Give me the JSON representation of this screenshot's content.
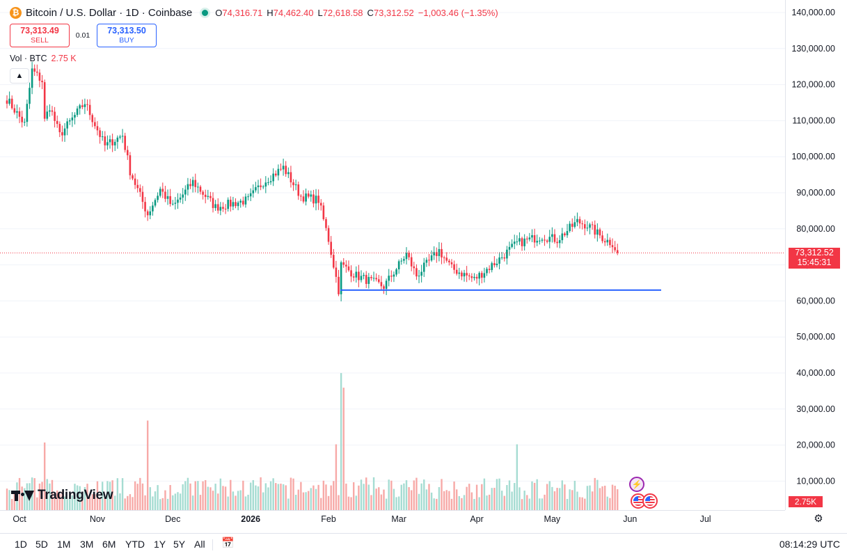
{
  "header": {
    "coin_icon": "bitcoin-icon",
    "symbol": "Bitcoin / U.S. Dollar · 1D · Coinbase",
    "o_label": "O",
    "o_value": "74,316.71",
    "h_label": "H",
    "h_value": "74,462.40",
    "l_label": "L",
    "l_value": "72,618.58",
    "c_label": "C",
    "c_value": "73,312.52",
    "change": "−1,003.46 (−1.35%)"
  },
  "trade": {
    "sell_price": "73,313.49",
    "sell_label": "SELL",
    "spread": "0.01",
    "buy_price": "73,313.50",
    "buy_label": "BUY"
  },
  "volume_legend": {
    "label": "Vol · BTC",
    "value": "2.75 K"
  },
  "price_axis": {
    "labels": [
      "140,000.00",
      "130,000.00",
      "120,000.00",
      "110,000.00",
      "100,000.00",
      "90,000.00",
      "80,000.00",
      "70,000.00",
      "60,000.00",
      "50,000.00",
      "40,000.00",
      "30,000.00",
      "20,000.00",
      "10,000.00"
    ],
    "current_price": "73,312.52",
    "countdown": "15:45:31",
    "volume_tag": "2.75K"
  },
  "time_axis": [
    "Oct",
    "Nov",
    "Dec",
    "2026",
    "Feb",
    "Mar",
    "Apr",
    "May",
    "Jun",
    "Jul"
  ],
  "logo": "TradingView",
  "timeframes": [
    "1D",
    "5D",
    "1M",
    "3M",
    "6M",
    "YTD",
    "1Y",
    "5Y",
    "All"
  ],
  "clock": "08:14:29 UTC",
  "colors": {
    "up": "#089981",
    "down": "#f23645",
    "line": "#2962ff"
  },
  "chart_data": {
    "type": "candlestick",
    "y_axis_range": [
      0,
      140000
    ],
    "support_line": 63000,
    "anchors": [
      {
        "date": "2025-09-26",
        "price": 116000
      },
      {
        "date": "2025-09-30",
        "price": 112000
      },
      {
        "date": "2025-10-03",
        "price": 109000
      },
      {
        "date": "2025-10-06",
        "price": 124000
      },
      {
        "date": "2025-10-10",
        "price": 121000
      },
      {
        "date": "2025-10-11",
        "price": 110000
      },
      {
        "date": "2025-10-13",
        "price": 114000
      },
      {
        "date": "2025-10-17",
        "price": 106000
      },
      {
        "date": "2025-10-27",
        "price": 115000
      },
      {
        "date": "2025-11-04",
        "price": 103000
      },
      {
        "date": "2025-11-11",
        "price": 106000
      },
      {
        "date": "2025-11-14",
        "price": 96000
      },
      {
        "date": "2025-11-21",
        "price": 84000
      },
      {
        "date": "2025-11-26",
        "price": 91000
      },
      {
        "date": "2025-12-01",
        "price": 86000
      },
      {
        "date": "2025-12-09",
        "price": 93000
      },
      {
        "date": "2025-12-18",
        "price": 86000
      },
      {
        "date": "2025-12-31",
        "price": 88000
      },
      {
        "date": "2026-01-06",
        "price": 93000
      },
      {
        "date": "2026-01-14",
        "price": 97000
      },
      {
        "date": "2026-01-21",
        "price": 89000
      },
      {
        "date": "2026-01-28",
        "price": 88000
      },
      {
        "date": "2026-02-01",
        "price": 77000
      },
      {
        "date": "2026-02-05",
        "price": 63000
      },
      {
        "date": "2026-02-06",
        "price": 70000
      },
      {
        "date": "2026-02-12",
        "price": 67000
      },
      {
        "date": "2026-02-23",
        "price": 64000
      },
      {
        "date": "2026-03-04",
        "price": 73000
      },
      {
        "date": "2026-03-08",
        "price": 67000
      },
      {
        "date": "2026-03-17",
        "price": 74000
      },
      {
        "date": "2026-03-22",
        "price": 69000
      },
      {
        "date": "2026-03-31",
        "price": 66000
      },
      {
        "date": "2026-04-09",
        "price": 71000
      },
      {
        "date": "2026-04-17",
        "price": 76000
      },
      {
        "date": "2026-04-27",
        "price": 78000
      },
      {
        "date": "2026-05-03",
        "price": 77000
      },
      {
        "date": "2026-05-11",
        "price": 82000
      },
      {
        "date": "2026-05-15",
        "price": 81000
      },
      {
        "date": "2026-05-22",
        "price": 77000
      },
      {
        "date": "2026-05-25",
        "price": 76000
      },
      {
        "date": "2026-05-27",
        "price": 73312
      }
    ],
    "volume_spikes": [
      {
        "date": "2025-10-11",
        "volume": 18500
      },
      {
        "date": "2025-11-21",
        "volume": 24500
      },
      {
        "date": "2026-02-06",
        "volume": 37500
      },
      {
        "date": "2026-02-07",
        "volume": 33500
      },
      {
        "date": "2026-02-04",
        "volume": 18000
      },
      {
        "date": "2026-04-17",
        "volume": 18000
      }
    ]
  }
}
